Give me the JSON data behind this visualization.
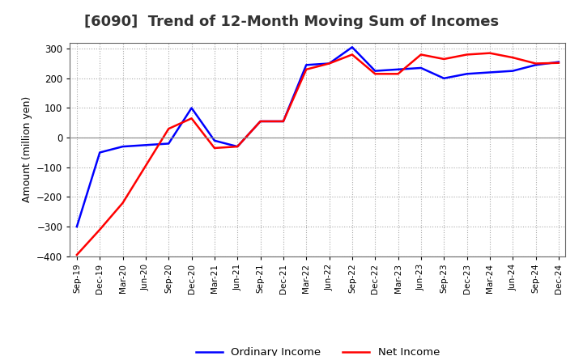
{
  "title": "[6090]  Trend of 12-Month Moving Sum of Incomes",
  "ylabel": "Amount (million yen)",
  "ylim": [
    -400,
    320
  ],
  "yticks": [
    -400,
    -300,
    -200,
    -100,
    0,
    100,
    200,
    300
  ],
  "background_color": "#ffffff",
  "grid_color": "#aaaaaa",
  "ordinary_color": "#0000ff",
  "net_color": "#ff0000",
  "x_labels": [
    "Sep-19",
    "Dec-19",
    "Mar-20",
    "Jun-20",
    "Sep-20",
    "Dec-20",
    "Mar-21",
    "Jun-21",
    "Sep-21",
    "Dec-21",
    "Mar-22",
    "Jun-22",
    "Sep-22",
    "Dec-22",
    "Mar-23",
    "Jun-23",
    "Sep-23",
    "Dec-23",
    "Mar-24",
    "Jun-24",
    "Sep-24",
    "Dec-24"
  ],
  "ordinary_income": [
    -300,
    -50,
    -30,
    -25,
    -20,
    100,
    -10,
    -30,
    55,
    55,
    245,
    250,
    305,
    225,
    230,
    235,
    200,
    215,
    220,
    225,
    245,
    255
  ],
  "net_income": [
    -395,
    -310,
    -220,
    -95,
    30,
    65,
    -35,
    -30,
    55,
    55,
    230,
    250,
    280,
    215,
    215,
    280,
    265,
    280,
    285,
    270,
    250,
    252
  ]
}
